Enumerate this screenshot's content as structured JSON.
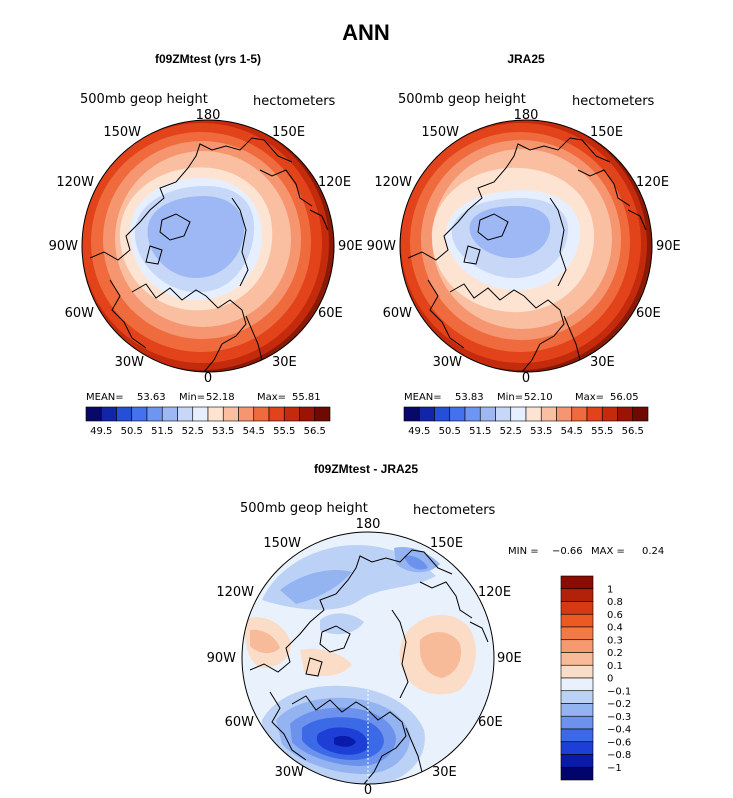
{
  "title": "ANN",
  "variable_label": "500mb geop height",
  "units_label": "hectometers",
  "panels": [
    {
      "title": "f09ZMtest (yrs 1-5)",
      "stats": {
        "mean_label": "MEAN=",
        "mean": "53.63",
        "min_label": "Min=",
        "min": "52.18",
        "max_label": "Max=",
        "max": "55.81"
      }
    },
    {
      "title": "JRA25",
      "stats": {
        "mean_label": "MEAN=",
        "mean": "53.83",
        "min_label": "Min=",
        "min": "52.10",
        "max_label": "Max=",
        "max": "56.05"
      }
    },
    {
      "title": "f09ZMtest - JRA25",
      "stats": {
        "min_label": "MIN =",
        "min": "−0.66",
        "max_label": "MAX =",
        "max": "0.24"
      }
    }
  ],
  "lon_labels": {
    "top": "180",
    "bottom": "0",
    "w150": "150W",
    "e150": "150E",
    "w120": "120W",
    "e120": "120E",
    "w90": "90W",
    "e90": "90E",
    "w60": "60W",
    "e60": "60E",
    "w30": "30W",
    "e30": "30E"
  },
  "chart_data": [
    {
      "type": "heatmap",
      "projection": "north polar stereographic",
      "title": "f09ZMtest (yrs 1-5)",
      "units": "hectometers",
      "levels": [
        49.5,
        50,
        50.5,
        51,
        51.5,
        52,
        52.5,
        53,
        53.5,
        54,
        54.5,
        55,
        55.5,
        56,
        56.5
      ],
      "colorbar_tick_labels": [
        "49.5",
        "50.5",
        "51.5",
        "52.5",
        "53.5",
        "54.5",
        "55.5",
        "56.5"
      ],
      "colors": [
        "#08086b",
        "#1224a8",
        "#2450d8",
        "#4472ee",
        "#6f95f2",
        "#9db8f5",
        "#c6d7f8",
        "#e6efff",
        "#fde3d2",
        "#f9bfa0",
        "#f59670",
        "#ef6a3c",
        "#e2431a",
        "#c42a0c",
        "#9a1305",
        "#6e0a02"
      ],
      "mean": 53.63,
      "min": 52.18,
      "max": 55.81
    },
    {
      "type": "heatmap",
      "projection": "north polar stereographic",
      "title": "JRA25",
      "units": "hectometers",
      "levels": [
        49.5,
        50,
        50.5,
        51,
        51.5,
        52,
        52.5,
        53,
        53.5,
        54,
        54.5,
        55,
        55.5,
        56,
        56.5
      ],
      "colorbar_tick_labels": [
        "49.5",
        "50.5",
        "51.5",
        "52.5",
        "53.5",
        "54.5",
        "55.5",
        "56.5"
      ],
      "colors": [
        "#08086b",
        "#1224a8",
        "#2450d8",
        "#4472ee",
        "#6f95f2",
        "#9db8f5",
        "#c6d7f8",
        "#e6efff",
        "#fde3d2",
        "#f9bfa0",
        "#f59670",
        "#ef6a3c",
        "#e2431a",
        "#c42a0c",
        "#9a1305",
        "#6e0a02"
      ],
      "mean": 53.83,
      "min": 52.1,
      "max": 56.05
    },
    {
      "type": "heatmap",
      "projection": "north polar stereographic",
      "title": "f09ZMtest - JRA25",
      "units": "hectometers",
      "levels": [
        -1,
        -0.8,
        -0.6,
        -0.4,
        -0.3,
        -0.2,
        -0.1,
        0,
        0.1,
        0.2,
        0.3,
        0.4,
        0.6,
        0.8,
        1
      ],
      "colorbar_tick_labels": [
        "1",
        "0.8",
        "0.6",
        "0.4",
        "0.3",
        "0.2",
        "0.1",
        "0",
        "−0.1",
        "−0.2",
        "−0.3",
        "−0.4",
        "−0.6",
        "−0.8",
        "−1"
      ],
      "colors": [
        "#8a0c02",
        "#b3210a",
        "#d63a12",
        "#ec5a24",
        "#f27b45",
        "#f59a6f",
        "#f8bb99",
        "#fbdcc7",
        "#e9f1fd",
        "#bcd1f6",
        "#94b3f1",
        "#6d92ee",
        "#3c6ae6",
        "#1e3fd6",
        "#0a1aaa",
        "#03036e"
      ],
      "min": -0.66,
      "max": 0.24
    }
  ]
}
